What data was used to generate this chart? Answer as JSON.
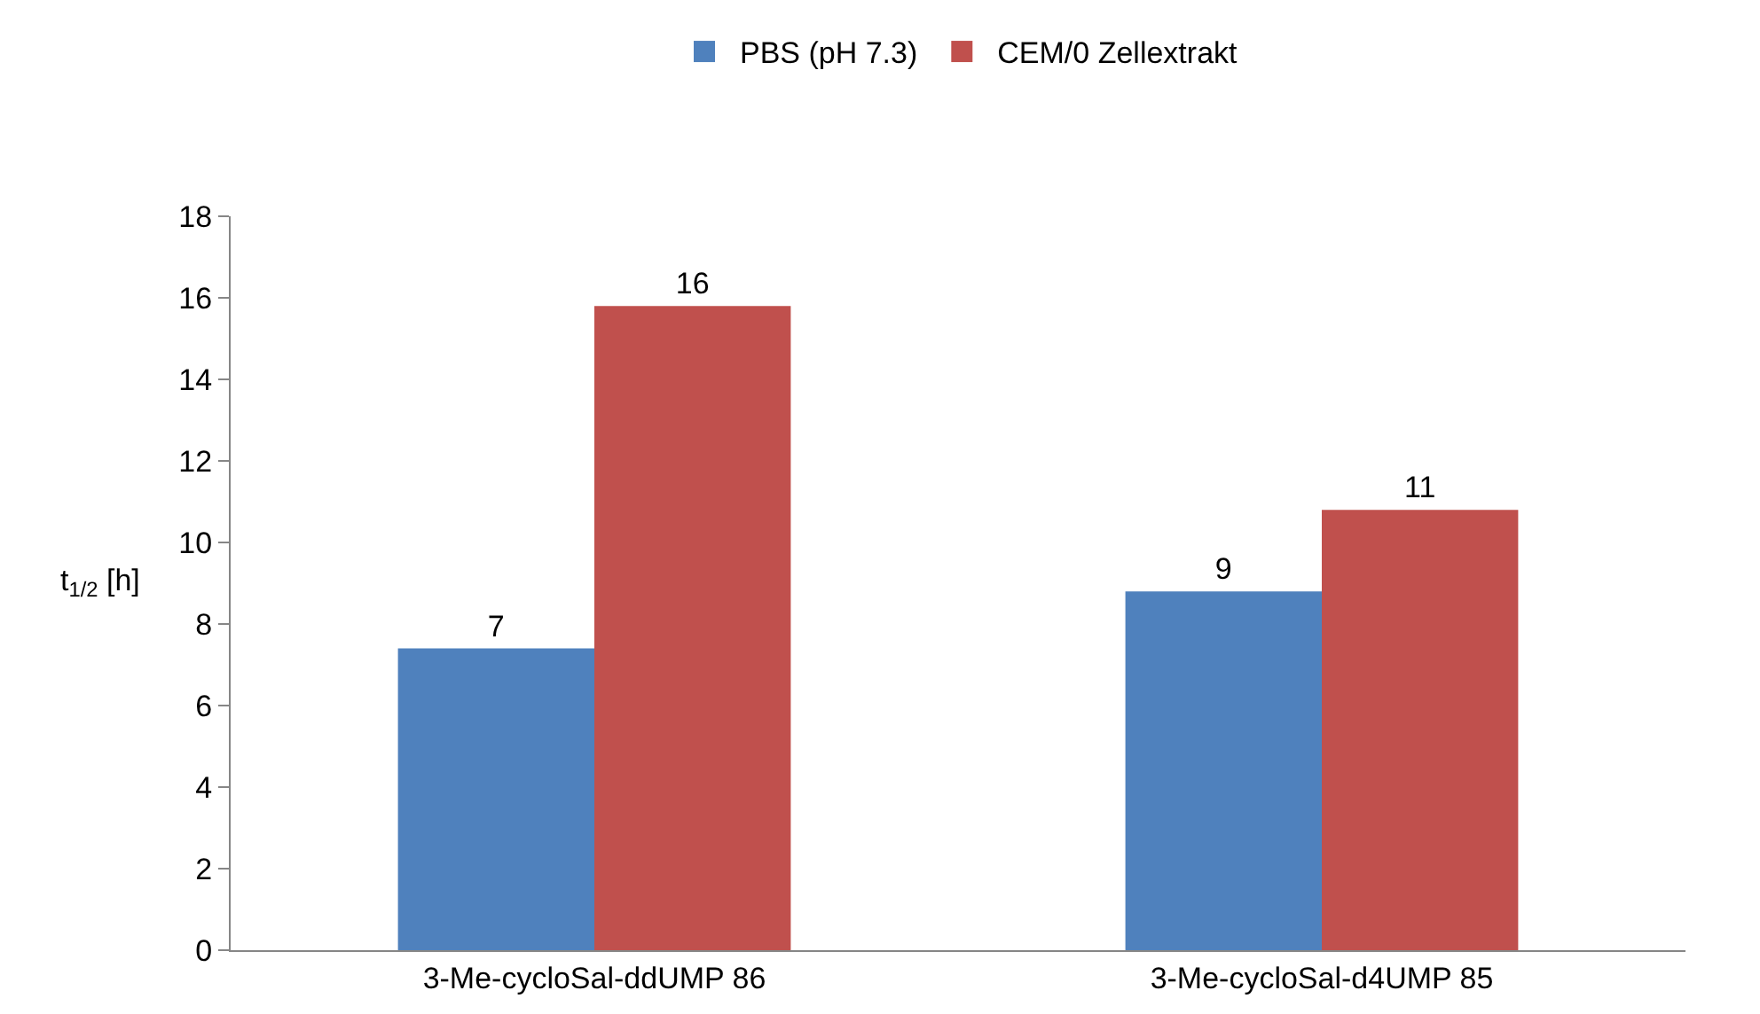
{
  "chart_data": {
    "type": "bar",
    "ylabel": "t$_{1/2}$ [h]",
    "categories": [
      "3-Me-cycloSal-ddUMP 86",
      "3-Me-cycloSal-d4UMP 85"
    ],
    "series": [
      {
        "name": "PBS (pH 7.3)",
        "color": "#4f81bd",
        "values": [
          7.4,
          8.8
        ],
        "value_labels": [
          "7",
          "9"
        ]
      },
      {
        "name": "CEM/0 Zellextrakt",
        "color": "#c0504d",
        "values": [
          15.8,
          10.8
        ],
        "value_labels": [
          "16",
          "11"
        ]
      }
    ],
    "ylim": [
      0,
      18
    ],
    "yticks": [
      0,
      2,
      4,
      6,
      8,
      10,
      12,
      14,
      16,
      18
    ],
    "grid": false,
    "legend": "top"
  }
}
